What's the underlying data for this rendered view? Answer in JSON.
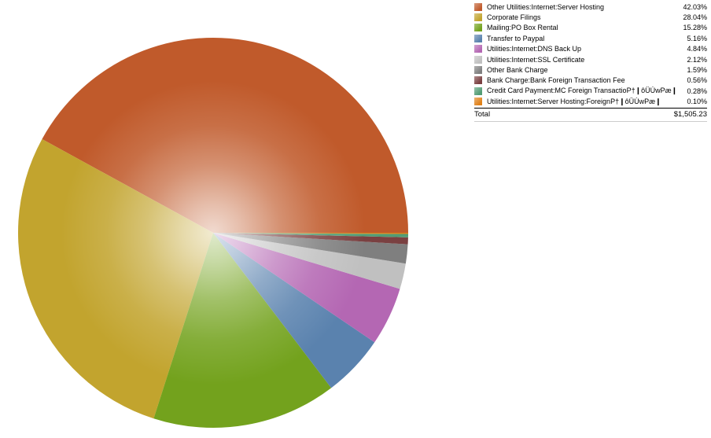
{
  "chart_data": {
    "type": "pie",
    "title": "",
    "legend_position": "top-right",
    "start_angle_deg": 0,
    "direction": "counterclockwise",
    "gloss": "radial-white-highlight-at-center",
    "slices": [
      {
        "label": "Other Utilities:Internet:Server Hosting",
        "pct": 42.03,
        "pct_label": "42.03%",
        "color": "#c05a2b"
      },
      {
        "label": "Corporate Filings",
        "pct": 28.04,
        "pct_label": "28.04%",
        "color": "#c2a42e"
      },
      {
        "label": "Mailing:PO Box Rental",
        "pct": 15.28,
        "pct_label": "15.28%",
        "color": "#73a21d"
      },
      {
        "label": "Transfer to Paypal",
        "pct": 5.16,
        "pct_label": "5.16%",
        "color": "#5a82ae"
      },
      {
        "label": "Utilities:Internet:DNS Back Up",
        "pct": 4.84,
        "pct_label": "4.84%",
        "color": "#b467b3"
      },
      {
        "label": "Utilities:Internet:SSL Certificate",
        "pct": 2.12,
        "pct_label": "2.12%",
        "color": "#c0c0c0"
      },
      {
        "label": "Other Bank Charge",
        "pct": 1.59,
        "pct_label": "1.59%",
        "color": "#7f7f7f"
      },
      {
        "label": "Bank Charge:Bank Foreign Transaction Fee",
        "pct": 0.56,
        "pct_label": "0.56%",
        "color": "#7a4041"
      },
      {
        "label": "Credit Card Payment:MC Foreign TransactioP†❙ôÜÙwPæ❙",
        "pct": 0.28,
        "pct_label": "0.28%",
        "color": "#529c74"
      },
      {
        "label": "Utilities:Internet:Server Hosting:ForeignP†❙ôÜÙwPæ❙",
        "pct": 0.1,
        "pct_label": "0.10%",
        "color": "#e08119"
      }
    ],
    "total": {
      "label": "Total",
      "value": "$1,505.23"
    }
  }
}
